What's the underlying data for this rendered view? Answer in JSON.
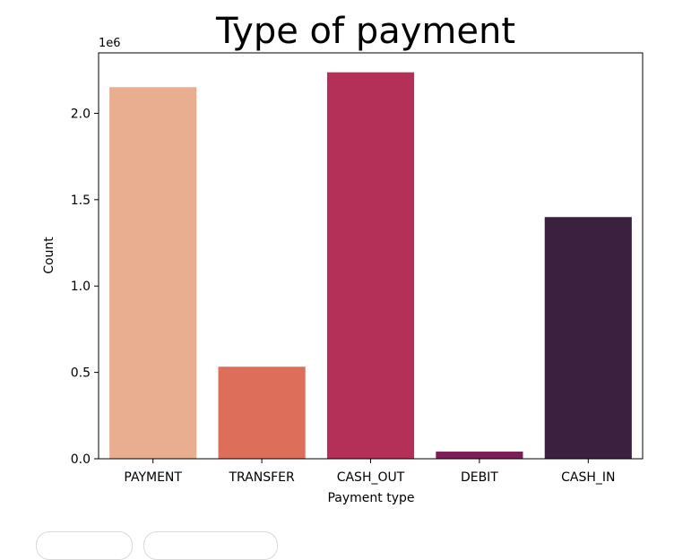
{
  "chart_data": {
    "type": "bar",
    "title": "Type of payment",
    "xlabel": "Payment type",
    "ylabel": "Count",
    "y_offset_label": "1e6",
    "categories": [
      "PAYMENT",
      "TRANSFER",
      "CASH_OUT",
      "DEBIT",
      "CASH_IN"
    ],
    "values": [
      2151495,
      532909,
      2237500,
      41432,
      1399284
    ],
    "colors": [
      "#e9ae90",
      "#dc6e5a",
      "#b43058",
      "#7a1f57",
      "#3b2040"
    ],
    "ylim": [
      0,
      2350000
    ],
    "yticks": [
      0,
      500000,
      1000000,
      1500000,
      2000000
    ],
    "ytick_labels": [
      "0.0",
      "0.5",
      "1.0",
      "1.5",
      "2.0"
    ],
    "grid": false
  }
}
